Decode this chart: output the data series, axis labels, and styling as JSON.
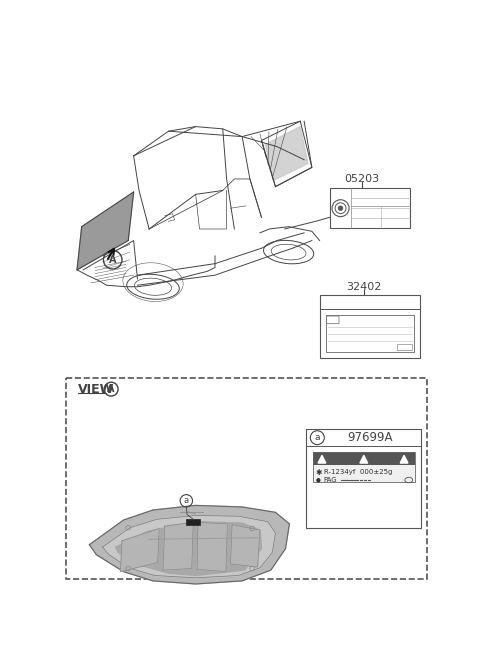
{
  "bg_color": "#ffffff",
  "part_05203": "05203",
  "part_32402": "32402",
  "part_97699A": "97699A",
  "view_text": "VIEW",
  "callout_a_lower": "a",
  "label_r1234yf": "R-1234yf  000±25g",
  "label_pag": "PAG",
  "line_color": "#444444",
  "gray_fill": "#c0c0c0",
  "dark_gray": "#888888",
  "light_gray": "#d8d8d8"
}
